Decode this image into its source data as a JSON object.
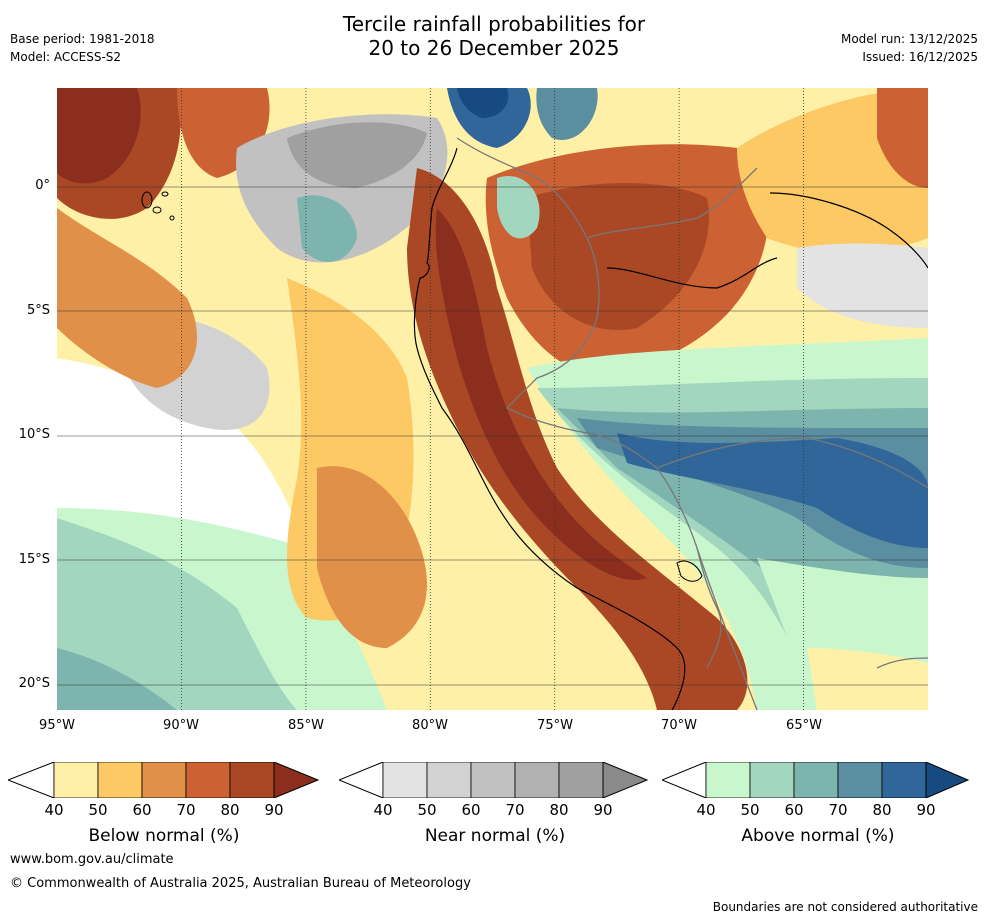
{
  "header": {
    "title_line1": "Tercile rainfall probabilities for",
    "title_line2": "20 to 26 December 2025",
    "base_period": "Base period: 1981-2018",
    "model": "Model: ACCESS-S2",
    "model_run": "Model run: 13/12/2025",
    "issued": "Issued: 16/12/2025"
  },
  "map": {
    "lat_labels": [
      "0°",
      "5°S",
      "10°S",
      "15°S",
      "20°S"
    ],
    "lon_labels": [
      "95°W",
      "90°W",
      "85°W",
      "80°W",
      "75°W",
      "70°W",
      "65°W"
    ]
  },
  "legends": [
    {
      "title": "Below normal (%)",
      "ticks": [
        "40",
        "50",
        "60",
        "70",
        "80",
        "90"
      ],
      "colors": [
        "#fff0a8",
        "#fdc964",
        "#e09048",
        "#cc6133",
        "#aa4826",
        "#8b2e1e"
      ]
    },
    {
      "title": "Near normal (%)",
      "ticks": [
        "40",
        "50",
        "60",
        "70",
        "80",
        "90"
      ],
      "colors": [
        "#e3e3e3",
        "#d2d2d2",
        "#c1c1c1",
        "#b1b1b1",
        "#a0a0a0",
        "#8a8a8a"
      ]
    },
    {
      "title": "Above normal (%)",
      "ticks": [
        "40",
        "50",
        "60",
        "70",
        "80",
        "90"
      ],
      "colors": [
        "#c9f7cd",
        "#a3d6be",
        "#7db4ad",
        "#5a8ea0",
        "#31669a",
        "#174a7e"
      ]
    }
  ],
  "footer": {
    "url": "www.bom.gov.au/climate",
    "copyright": "© Commonwealth of Australia 2025, Australian Bureau of Meteorology",
    "disclaimer": "Boundaries are not considered authoritative"
  }
}
